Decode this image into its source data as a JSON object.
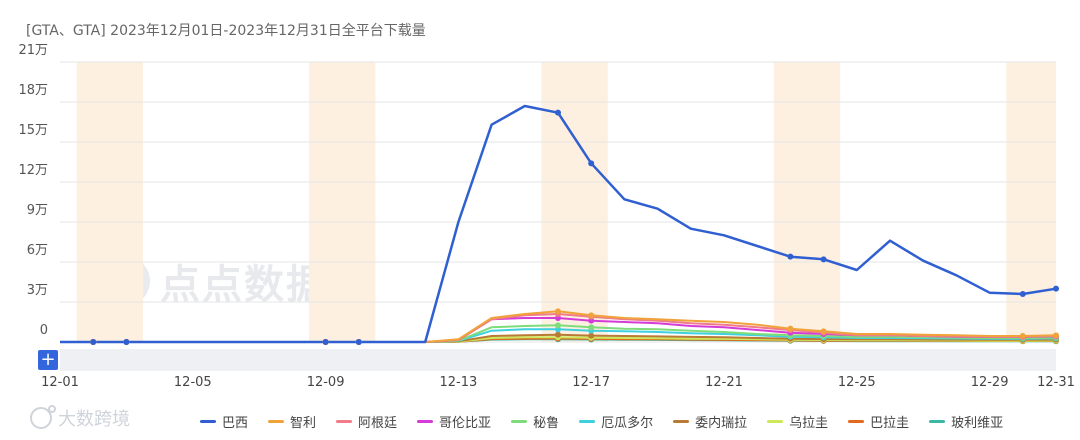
{
  "title": "[GTA、GTA]  2023年12月01日-2023年12月31日全平台下载量",
  "watermark_text": "点点数据",
  "brand_text": "大数跨境",
  "plus_label": "+",
  "colors": {
    "grid": "#e6e6e6",
    "weekend": "#fdf0e1"
  },
  "chart_data": {
    "type": "line",
    "title": "[GTA、GTA]  2023年12月01日-2023年12月31日全平台下载量",
    "xlabel": "",
    "ylabel": "",
    "x": [
      "12-01",
      "12-02",
      "12-03",
      "12-04",
      "12-05",
      "12-06",
      "12-07",
      "12-08",
      "12-09",
      "12-10",
      "12-11",
      "12-12",
      "12-13",
      "12-14",
      "12-15",
      "12-16",
      "12-17",
      "12-18",
      "12-19",
      "12-20",
      "12-21",
      "12-22",
      "12-23",
      "12-24",
      "12-25",
      "12-26",
      "12-27",
      "12-28",
      "12-29",
      "12-30",
      "12-31"
    ],
    "x_tick_labels": [
      "12-01",
      "12-05",
      "12-09",
      "12-13",
      "12-17",
      "12-21",
      "12-25",
      "12-29",
      "12-31"
    ],
    "x_tick_dates": [
      "12-01",
      "12-05",
      "12-09",
      "12-13",
      "12-17",
      "12-21",
      "12-25",
      "12-29",
      "12-31"
    ],
    "y_tick_values": [
      0,
      30000,
      60000,
      90000,
      120000,
      150000,
      180000,
      210000
    ],
    "y_tick_labels": [
      "0",
      "3万",
      "6万",
      "9万",
      "12万",
      "15万",
      "18万",
      "21万"
    ],
    "ylim": [
      0,
      210000
    ],
    "grid": true,
    "legend_position": "bottom",
    "weekend_bands": [
      [
        "12-02",
        "12-03"
      ],
      [
        "12-09",
        "12-10"
      ],
      [
        "12-16",
        "12-17"
      ],
      [
        "12-23",
        "12-24"
      ],
      [
        "12-30",
        "12-31"
      ]
    ],
    "marker_dates": [
      "12-02",
      "12-03",
      "12-09",
      "12-10",
      "12-16",
      "12-17",
      "12-23",
      "12-24",
      "12-30",
      "12-31"
    ],
    "series": [
      {
        "name": "巴西",
        "color": "#2f5fd0",
        "values": [
          0,
          0,
          0,
          0,
          0,
          0,
          0,
          0,
          0,
          0,
          0,
          0,
          90000,
          163000,
          177000,
          172000,
          134000,
          107000,
          100000,
          85000,
          80000,
          72000,
          64000,
          62000,
          54000,
          76000,
          61000,
          50000,
          37000,
          36000,
          40000
        ]
      },
      {
        "name": "智利",
        "color": "#f0a33a",
        "values": [
          0,
          0,
          0,
          0,
          0,
          0,
          0,
          0,
          0,
          0,
          0,
          0,
          2000,
          18000,
          21000,
          23000,
          20000,
          18000,
          17000,
          16000,
          15000,
          13000,
          10000,
          8000,
          6000,
          6000,
          5500,
          5000,
          4500,
          4500,
          5000
        ]
      },
      {
        "name": "阿根廷",
        "color": "#f07b8a",
        "values": [
          0,
          0,
          0,
          0,
          0,
          0,
          0,
          0,
          0,
          0,
          0,
          0,
          1500,
          17000,
          20000,
          21000,
          19000,
          17000,
          16000,
          14000,
          13000,
          11000,
          9000,
          7000,
          5000,
          5000,
          4500,
          4200,
          4000,
          4000,
          4500
        ]
      },
      {
        "name": "哥伦比亚",
        "color": "#d43cd8",
        "values": [
          0,
          0,
          0,
          0,
          0,
          0,
          0,
          0,
          0,
          0,
          0,
          0,
          1500,
          17000,
          18000,
          18000,
          16000,
          15000,
          14000,
          12000,
          11000,
          9000,
          7000,
          6000,
          5000,
          5000,
          4500,
          4000,
          3800,
          3800,
          4200
        ]
      },
      {
        "name": "秘鲁",
        "color": "#7fdc7a",
        "values": [
          0,
          0,
          0,
          0,
          0,
          0,
          0,
          0,
          0,
          0,
          0,
          0,
          1000,
          11000,
          12000,
          12500,
          11000,
          10000,
          9500,
          8500,
          7500,
          6000,
          5000,
          4500,
          3800,
          3800,
          3500,
          3200,
          3000,
          3000,
          3200
        ]
      },
      {
        "name": "厄瓜多尔",
        "color": "#3fd0e0",
        "values": [
          0,
          0,
          0,
          0,
          0,
          0,
          0,
          0,
          0,
          0,
          0,
          0,
          800,
          8500,
          9500,
          9500,
          8500,
          8000,
          7500,
          6500,
          6000,
          5000,
          4000,
          3500,
          3000,
          3000,
          2800,
          2600,
          2500,
          2500,
          2700
        ]
      },
      {
        "name": "委内瑞拉",
        "color": "#b87a35",
        "values": [
          0,
          0,
          0,
          0,
          0,
          0,
          0,
          0,
          0,
          0,
          0,
          0,
          500,
          4500,
          5000,
          5500,
          4800,
          4500,
          4200,
          3800,
          3500,
          3000,
          2500,
          2200,
          2000,
          2000,
          1900,
          1800,
          1700,
          1700,
          1800
        ]
      },
      {
        "name": "乌拉圭",
        "color": "#cde85a",
        "values": [
          0,
          0,
          0,
          0,
          0,
          0,
          0,
          0,
          0,
          0,
          0,
          0,
          300,
          3000,
          3500,
          3600,
          3200,
          3000,
          2800,
          2500,
          2300,
          2000,
          1700,
          1500,
          1300,
          1300,
          1200,
          1100,
          1000,
          1000,
          1100
        ]
      },
      {
        "name": "巴拉圭",
        "color": "#e06a20",
        "values": [
          0,
          0,
          0,
          0,
          0,
          0,
          0,
          0,
          0,
          0,
          0,
          0,
          200,
          2200,
          2500,
          2600,
          2300,
          2100,
          2000,
          1800,
          1600,
          1400,
          1200,
          1000,
          900,
          900,
          850,
          800,
          750,
          750,
          800
        ]
      },
      {
        "name": "玻利维亚",
        "color": "#3ab8a5",
        "values": [
          0,
          0,
          0,
          0,
          0,
          0,
          0,
          0,
          0,
          0,
          0,
          0,
          200,
          1800,
          2000,
          2100,
          1900,
          1700,
          1600,
          1400,
          1300,
          1100,
          900,
          800,
          700,
          700,
          650,
          600,
          550,
          550,
          600
        ]
      }
    ]
  }
}
